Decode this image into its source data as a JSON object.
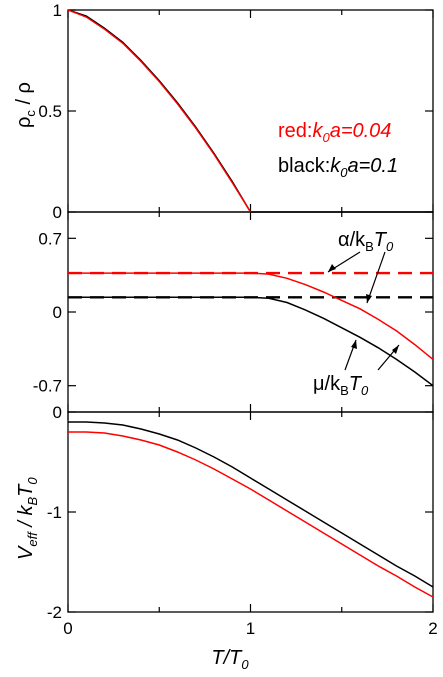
{
  "chart_data": [
    {
      "type": "line",
      "panel": "top",
      "ylabel_main": "ρ",
      "ylabel_sub": "c",
      "ylabel_tail": " / ρ",
      "xlim": [
        0,
        2
      ],
      "ylim": [
        0,
        1
      ],
      "yticks": [
        0,
        0.5,
        1
      ],
      "ytick_labels": [
        "0",
        "0.5",
        "1"
      ],
      "legend": [
        {
          "prefix": "red:",
          "k": "k",
          "k_sub": "0",
          "rest": "a=0.04",
          "color": "#ff0000"
        },
        {
          "prefix": "black:",
          "k": "k",
          "k_sub": "0",
          "rest": "a=0.1",
          "color": "#000000"
        }
      ],
      "series": [
        {
          "color": "#000000",
          "x": [
            0,
            0.1,
            0.2,
            0.3,
            0.4,
            0.5,
            0.6,
            0.7,
            0.8,
            0.9,
            1.0,
            1.1,
            1.2,
            1.4,
            1.6,
            1.8,
            2.0
          ],
          "y": [
            1.0,
            0.97,
            0.91,
            0.84,
            0.75,
            0.65,
            0.54,
            0.42,
            0.29,
            0.15,
            0.0,
            0.0,
            0.0,
            0.0,
            0.0,
            0.0,
            0.0
          ]
        },
        {
          "color": "#ff0000",
          "x": [
            0,
            0.1,
            0.2,
            0.3,
            0.4,
            0.5,
            0.6,
            0.7,
            0.8,
            0.9,
            1.0
          ],
          "y": [
            1.0,
            0.965,
            0.905,
            0.835,
            0.745,
            0.645,
            0.535,
            0.415,
            0.285,
            0.145,
            0.0
          ]
        }
      ]
    },
    {
      "type": "line",
      "panel": "middle",
      "xlim": [
        0,
        2
      ],
      "ylim": [
        -0.95,
        0.95
      ],
      "yticks": [
        -0.7,
        0,
        0.7
      ],
      "ytick_labels": [
        "-0.7",
        "0",
        "0.7"
      ],
      "annotation_alpha": {
        "main": "α/k",
        "sub1": "B",
        "mid": "T",
        "sub2": "0"
      },
      "annotation_mu": {
        "main": "μ/k",
        "sub1": "B",
        "mid": "T",
        "sub2": "0"
      },
      "series": [
        {
          "color": "#ff0000",
          "dash": true,
          "x": [
            0,
            2
          ],
          "y": [
            0.37,
            0.37
          ]
        },
        {
          "color": "#000000",
          "dash": true,
          "x": [
            0,
            2
          ],
          "y": [
            0.14,
            0.14
          ]
        },
        {
          "color": "#ff0000",
          "x": [
            0,
            1.0,
            1.1,
            1.2,
            1.3,
            1.4,
            1.5,
            1.6,
            1.7,
            1.8,
            1.9,
            2.0
          ],
          "y": [
            0.37,
            0.37,
            0.36,
            0.32,
            0.26,
            0.19,
            0.11,
            0.03,
            -0.07,
            -0.18,
            -0.31,
            -0.45
          ]
        },
        {
          "color": "#000000",
          "x": [
            0,
            1.0,
            1.1,
            1.2,
            1.3,
            1.4,
            1.5,
            1.6,
            1.7,
            1.8,
            1.9,
            2.0
          ],
          "y": [
            0.14,
            0.14,
            0.13,
            0.09,
            0.02,
            -0.06,
            -0.15,
            -0.24,
            -0.34,
            -0.45,
            -0.57,
            -0.7
          ]
        }
      ]
    },
    {
      "type": "line",
      "panel": "bottom",
      "ylabel": {
        "v": "V",
        "v_sub": "eff",
        "mid": " / k",
        "b_sub": "B",
        "t": "T",
        "t_sub": "0"
      },
      "xlabel": {
        "t": "T/T",
        "t_sub": "0"
      },
      "xlim": [
        0,
        2
      ],
      "ylim": [
        -2,
        0
      ],
      "yticks": [
        -2,
        -1,
        0
      ],
      "ytick_labels": [
        "-2",
        "-1",
        "0"
      ],
      "xticks": [
        0,
        1,
        2
      ],
      "xtick_labels": [
        "0",
        "1",
        "2"
      ],
      "series": [
        {
          "color": "#000000",
          "x": [
            0,
            0.1,
            0.2,
            0.3,
            0.4,
            0.5,
            0.6,
            0.7,
            0.8,
            0.9,
            1.0,
            1.1,
            1.2,
            1.3,
            1.4,
            1.5,
            1.6,
            1.7,
            1.8,
            1.9,
            2.0
          ],
          "y": [
            -0.1,
            -0.1,
            -0.11,
            -0.13,
            -0.17,
            -0.22,
            -0.28,
            -0.36,
            -0.45,
            -0.55,
            -0.66,
            -0.77,
            -0.88,
            -0.99,
            -1.1,
            -1.21,
            -1.32,
            -1.43,
            -1.54,
            -1.64,
            -1.75
          ]
        },
        {
          "color": "#ff0000",
          "x": [
            0,
            0.1,
            0.2,
            0.3,
            0.4,
            0.5,
            0.6,
            0.7,
            0.8,
            0.9,
            1.0,
            1.1,
            1.2,
            1.3,
            1.4,
            1.5,
            1.6,
            1.7,
            1.8,
            1.9,
            2.0
          ],
          "y": [
            -0.2,
            -0.2,
            -0.21,
            -0.24,
            -0.28,
            -0.33,
            -0.4,
            -0.48,
            -0.57,
            -0.67,
            -0.77,
            -0.88,
            -0.99,
            -1.1,
            -1.21,
            -1.32,
            -1.43,
            -1.54,
            -1.64,
            -1.75,
            -1.85
          ]
        }
      ]
    }
  ]
}
